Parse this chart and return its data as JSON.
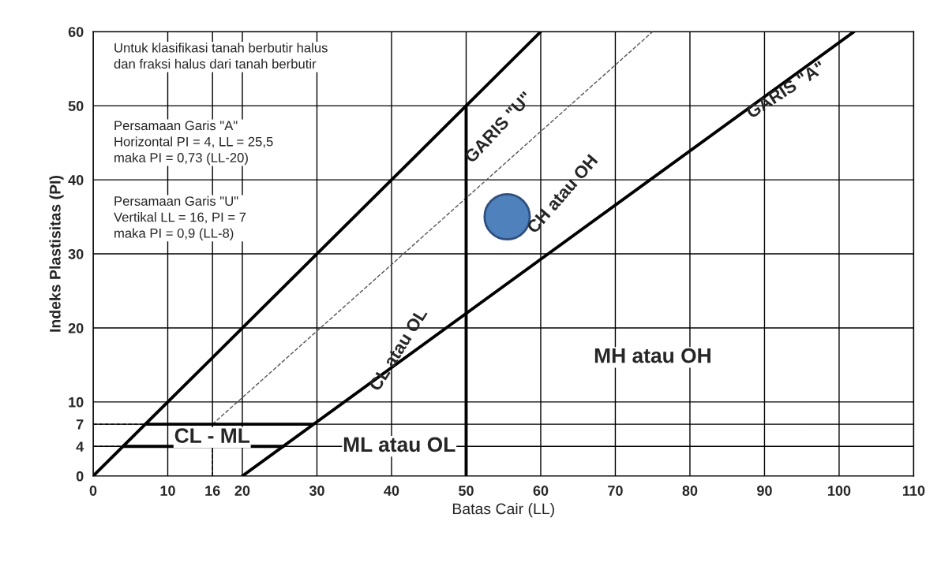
{
  "chart_data": {
    "type": "line",
    "xlabel": "Batas Cair (LL)",
    "ylabel": "Indeks Plastisitas (PI)",
    "xlim": [
      0,
      110
    ],
    "ylim": [
      0,
      60
    ],
    "xticks": [
      0,
      10,
      16,
      20,
      30,
      40,
      50,
      60,
      70,
      80,
      90,
      100,
      110
    ],
    "yticks": [
      0,
      4,
      7,
      10,
      20,
      30,
      40,
      50,
      60
    ],
    "grid": true,
    "marker": "none",
    "legend": false,
    "series": [
      {
        "color": "#000000",
        "x": [
          0,
          60
        ],
        "values": [
          0,
          60
        ]
      },
      {
        "color": "#000000",
        "x": [
          20,
          102
        ],
        "values": [
          0,
          60
        ]
      },
      {
        "color": "#555555",
        "x": [
          16,
          75
        ],
        "values": [
          7,
          60
        ],
        "line_style": "dashed"
      },
      {
        "color": "#000000",
        "x": [
          50,
          50
        ],
        "values": [
          0,
          50
        ]
      },
      {
        "color": "#000000",
        "x": [
          7,
          29.5
        ],
        "values": [
          7,
          7
        ]
      },
      {
        "color": "#000000",
        "x": [
          4,
          25.5
        ],
        "values": [
          4,
          4
        ]
      },
      {
        "color": "#000000",
        "x": [
          0,
          7
        ],
        "values": [
          7,
          7
        ],
        "line_style": "dashed"
      },
      {
        "color": "#000000",
        "x": [
          0,
          4
        ],
        "values": [
          4,
          4
        ],
        "line_style": "dashed"
      },
      {
        "color": "#000000",
        "x": [
          16,
          16
        ],
        "values": [
          0,
          7
        ],
        "line_style": "dashed"
      },
      {
        "type": "scatter",
        "color": "#4f81bd",
        "marker": "circle",
        "x": [
          55.5
        ],
        "values": [
          35
        ]
      }
    ],
    "annotations": [
      "Untuk klasifikasi tanah berbutir halus\ndan fraksi halus dari tanah berbutir",
      "Persamaan Garis \"A\"\nHorizontal PI = 4, LL = 25,5\nmaka PI = 0,73 (LL-20)",
      "Persamaan Garis \"U\"\nVertikal LL = 16, PI = 7\nmaka PI = 0,9 (LL-8)",
      "GARIS \"U\"",
      "GARIS \"A\"",
      "CH atau OH",
      "CL atau OL",
      "MH atau OH",
      "ML atau OL",
      "CL - ML"
    ]
  }
}
